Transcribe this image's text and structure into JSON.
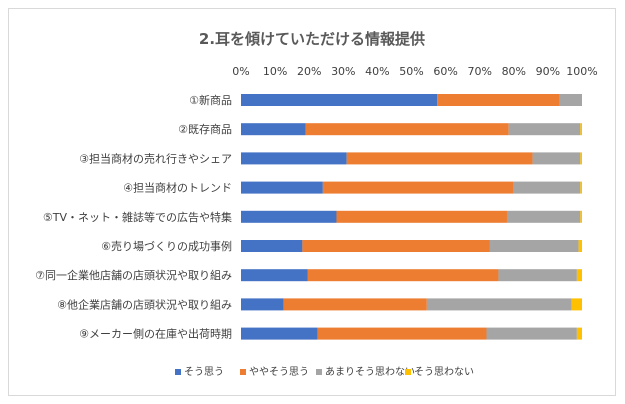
{
  "chart_data": {
    "type": "bar",
    "orientation": "horizontal",
    "stacked": "percent",
    "title": "2.耳を傾けていただける情報提供",
    "xlabel": "",
    "ylabel": "",
    "xlim": [
      0,
      100
    ],
    "x_ticks": [
      "0%",
      "10%",
      "20%",
      "30%",
      "40%",
      "50%",
      "60%",
      "70%",
      "80%",
      "90%",
      "100%"
    ],
    "grid": false,
    "legend_position": "bottom",
    "categories": [
      "①新商品",
      "②既存商品",
      "③担当商材の売れ行きやシェア",
      "④担当商材のトレンド",
      "⑤TV・ネット・雑誌等での広告や特集",
      "⑥売り場づくりの成功事例",
      "⑦同一企業他店舗の店頭状況や取り組み",
      "⑧他企業店舗の店頭状況や取り組み",
      "⑨メーカー側の在庫や出荷時期"
    ],
    "series": [
      {
        "name": "そう思う",
        "color": "#4472C4",
        "values": [
          57.5,
          19,
          31,
          24,
          28,
          18,
          19.5,
          12.5,
          22.5
        ]
      },
      {
        "name": "ややそう思う",
        "color": "#ED7D31",
        "values": [
          36,
          59.5,
          54.5,
          56,
          50,
          55,
          56,
          42,
          49.5
        ]
      },
      {
        "name": "あまりそう思わない",
        "color": "#A5A5A5",
        "values": [
          6.5,
          21,
          14,
          19.5,
          21.5,
          26,
          23,
          42.5,
          26.5
        ]
      },
      {
        "name": "そう思わない",
        "color": "#FFC000",
        "values": [
          0,
          0.5,
          0.5,
          0.5,
          0.5,
          1,
          1.5,
          3,
          1.5
        ]
      }
    ]
  }
}
